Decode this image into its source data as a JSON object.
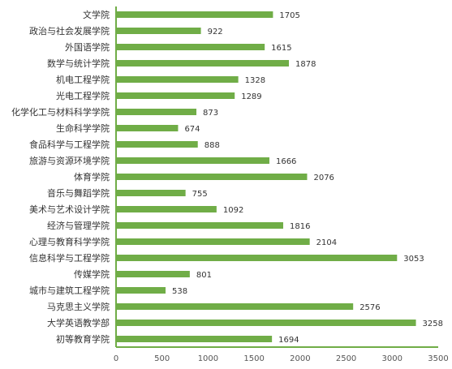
{
  "chart_data": {
    "type": "bar",
    "orientation": "horizontal",
    "categories": [
      "文学院",
      "政治与社会发展学院",
      "外国语学院",
      "数学与统计学院",
      "机电工程学院",
      "光电工程学院",
      "化学化工与材料科学学院",
      "生命科学学院",
      "食品科学与工程学院",
      "旅游与资源环境学院",
      "体育学院",
      "音乐与舞蹈学院",
      "美术与艺术设计学院",
      "经济与管理学院",
      "心理与教育科学学院",
      "信息科学与工程学院",
      "传媒学院",
      "城市与建筑工程学院",
      "马克思主义学院",
      "大学英语教学部",
      "初等教育学院"
    ],
    "values": [
      1705,
      922,
      1615,
      1878,
      1328,
      1289,
      873,
      674,
      888,
      1666,
      2076,
      755,
      1092,
      1816,
      2104,
      3053,
      801,
      538,
      2576,
      3258,
      1694
    ],
    "value_labels": [
      "1705",
      "922",
      "1615",
      "1878",
      "1328",
      "1289",
      "873",
      "674",
      "888",
      "1666",
      "2076",
      "755",
      "1092",
      "1816",
      "2104",
      "3053",
      "801",
      "538",
      "2576",
      "3258",
      "1694"
    ],
    "xlim": [
      0,
      3500
    ],
    "xticks": [
      0,
      500,
      1000,
      1500,
      2000,
      2500,
      3000,
      3500
    ],
    "xtick_labels": [
      "0",
      "500",
      "1000",
      "1500",
      "2000",
      "2500",
      "3000",
      "3500"
    ],
    "grid": false,
    "legend": "none",
    "colors": {
      "bar": "#70ad47",
      "axis": "#70ad47"
    }
  }
}
